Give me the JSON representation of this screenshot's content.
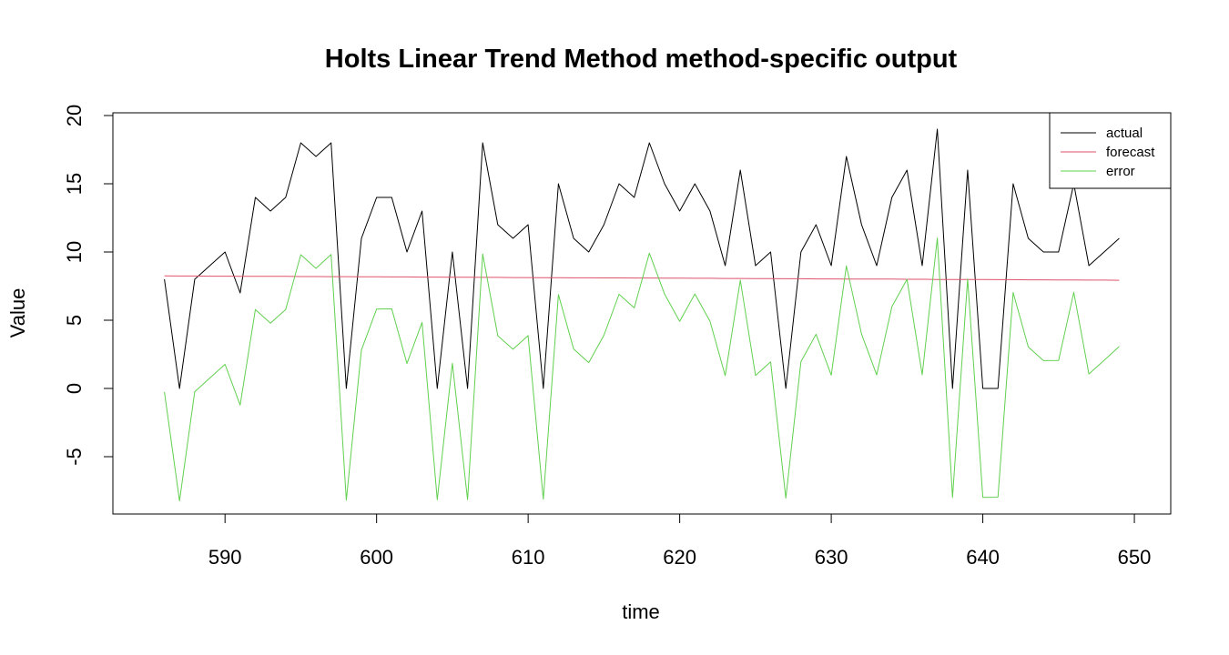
{
  "chart_data": {
    "type": "line",
    "title": "Holts Linear Trend Method method-specific output",
    "xlabel": "time",
    "ylabel": "Value",
    "xlim": [
      582.6,
      652.4
    ],
    "ylim": [
      -9.2,
      20.2
    ],
    "x_ticks": [
      590,
      600,
      610,
      620,
      630,
      640,
      650
    ],
    "y_ticks": [
      -5,
      0,
      5,
      10,
      15,
      20
    ],
    "grid": false,
    "legend_position": "top-right",
    "x": [
      586,
      587,
      588,
      589,
      590,
      591,
      592,
      593,
      594,
      595,
      596,
      597,
      598,
      599,
      600,
      601,
      602,
      603,
      604,
      605,
      606,
      607,
      608,
      609,
      610,
      611,
      612,
      613,
      614,
      615,
      616,
      617,
      618,
      619,
      620,
      621,
      622,
      623,
      624,
      625,
      626,
      627,
      628,
      629,
      630,
      631,
      632,
      633,
      634,
      635,
      636,
      637,
      638,
      639,
      640,
      641,
      642,
      643,
      644,
      645,
      646,
      647,
      648,
      649
    ],
    "series": [
      {
        "name": "actual",
        "color": "#000000",
        "values": [
          8,
          0,
          8,
          9,
          10,
          7,
          14,
          13,
          14,
          18,
          17,
          18,
          0,
          11,
          14,
          14,
          10,
          13,
          0,
          10,
          0,
          18,
          12,
          11,
          12,
          0,
          15,
          11,
          10,
          12,
          15,
          14,
          18,
          15,
          13,
          15,
          13,
          9,
          16,
          9,
          10,
          0,
          10,
          12,
          9,
          17,
          12,
          9,
          14,
          16,
          9,
          19,
          0,
          16,
          0,
          0,
          15,
          11,
          10,
          10,
          15,
          9,
          10,
          11
        ]
      },
      {
        "name": "forecast",
        "color": "#DF536B",
        "values": [
          8.25,
          8.24,
          8.24,
          8.23,
          8.23,
          8.22,
          8.22,
          8.21,
          8.21,
          8.2,
          8.2,
          8.19,
          8.19,
          8.18,
          8.18,
          8.17,
          8.17,
          8.16,
          8.16,
          8.15,
          8.15,
          8.14,
          8.14,
          8.13,
          8.13,
          8.12,
          8.12,
          8.11,
          8.11,
          8.1,
          8.1,
          8.09,
          8.09,
          8.08,
          8.08,
          8.07,
          8.07,
          8.06,
          8.06,
          8.05,
          8.05,
          8.04,
          8.04,
          8.03,
          8.03,
          8.02,
          8.02,
          8.01,
          8.01,
          8.0,
          8.0,
          7.99,
          7.99,
          7.98,
          7.98,
          7.97,
          7.97,
          7.96,
          7.96,
          7.95,
          7.95,
          7.94,
          7.94,
          7.93
        ]
      },
      {
        "name": "error",
        "color": "#61D04F",
        "values": [
          -0.25,
          -8.24,
          -0.24,
          0.77,
          1.77,
          -1.22,
          5.78,
          4.79,
          5.79,
          9.8,
          8.8,
          9.81,
          -8.19,
          2.82,
          5.82,
          5.83,
          1.83,
          4.84,
          -8.16,
          1.85,
          -8.15,
          9.86,
          3.86,
          2.87,
          3.87,
          -8.12,
          6.88,
          2.89,
          1.89,
          3.9,
          6.9,
          5.91,
          9.91,
          6.92,
          4.92,
          6.93,
          4.93,
          0.94,
          7.94,
          0.95,
          1.95,
          -8.04,
          1.96,
          3.97,
          0.97,
          8.98,
          3.98,
          0.99,
          5.99,
          8.0,
          1.0,
          11.01,
          -7.99,
          8.02,
          -7.98,
          -7.97,
          7.03,
          3.04,
          2.04,
          2.05,
          7.05,
          1.06,
          2.06,
          3.07
        ]
      }
    ]
  }
}
